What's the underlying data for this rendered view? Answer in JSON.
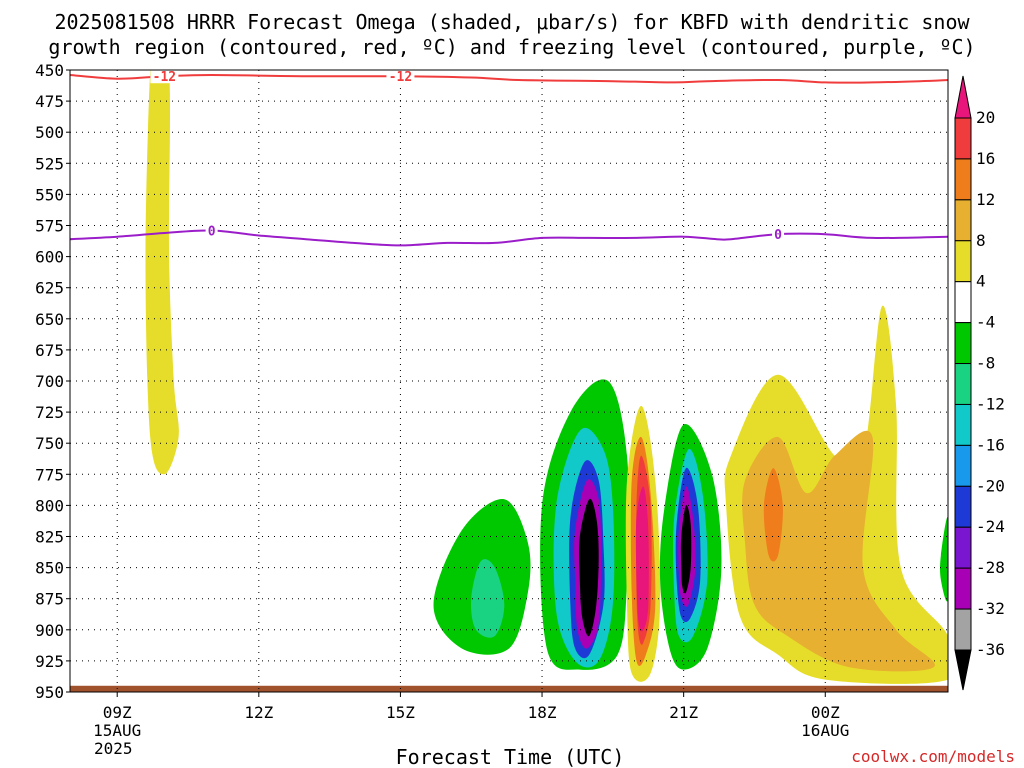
{
  "chart_data": {
    "type": "heatmap",
    "title_line1": "2025081508 HRRR Forecast Omega (shaded, μbar/s) for KBFD with dendritic snow",
    "title_line2": "growth region (contoured, red, ºC) and freezing level (contoured, purple, ºC)",
    "xlabel": "Forecast Time (UTC)",
    "ylabel": "",
    "y_ticks": [
      450,
      475,
      500,
      525,
      550,
      575,
      600,
      625,
      650,
      675,
      700,
      725,
      750,
      775,
      800,
      825,
      850,
      875,
      900,
      925,
      950
    ],
    "ylim": [
      450,
      950
    ],
    "xlim": [
      8,
      26.6
    ],
    "x_ticks": [
      {
        "x": 9,
        "label": "09Z",
        "sub1": "15AUG",
        "sub2": "2025"
      },
      {
        "x": 12,
        "label": "12Z",
        "sub1": "",
        "sub2": ""
      },
      {
        "x": 15,
        "label": "15Z",
        "sub1": "",
        "sub2": ""
      },
      {
        "x": 18,
        "label": "18Z",
        "sub1": "",
        "sub2": ""
      },
      {
        "x": 21,
        "label": "21Z",
        "sub1": "",
        "sub2": ""
      },
      {
        "x": 24,
        "label": "00Z",
        "sub1": "16AUG",
        "sub2": ""
      }
    ],
    "grid": true,
    "colorbar": {
      "labels": [
        "20",
        "16",
        "12",
        "8",
        "4",
        "-4",
        "-8",
        "-12",
        "-16",
        "-20",
        "-24",
        "-28",
        "-32",
        "-36"
      ],
      "colors": [
        "#e8157a",
        "#f03c3c",
        "#ef7d1c",
        "#e7b030",
        "#e6dd2a",
        "#ffffff",
        "#00c800",
        "#19d382",
        "#11c9c9",
        "#1899ec",
        "#1e3ad6",
        "#7b16d0",
        "#a800b4",
        "#a3a3a3",
        "#000000"
      ]
    },
    "contours": [
      {
        "label": "-12",
        "color": "#f03c3c",
        "points": [
          [
            8,
            454
          ],
          [
            9,
            457
          ],
          [
            10,
            455
          ],
          [
            11,
            454
          ],
          [
            13,
            455
          ],
          [
            15,
            455
          ],
          [
            16.5,
            456
          ],
          [
            17.5,
            458
          ],
          [
            19.5,
            459
          ],
          [
            20.8,
            460
          ],
          [
            21.5,
            459
          ],
          [
            23,
            458
          ],
          [
            24,
            460
          ],
          [
            25,
            460
          ],
          [
            26,
            459
          ],
          [
            26.6,
            458
          ]
        ]
      },
      {
        "label": "0",
        "color": "#9b1dc9",
        "points": [
          [
            8,
            586
          ],
          [
            9,
            584
          ],
          [
            10,
            581
          ],
          [
            11,
            579
          ],
          [
            12,
            583
          ],
          [
            13,
            586
          ],
          [
            14,
            589
          ],
          [
            15,
            591
          ],
          [
            16,
            589
          ],
          [
            17,
            589
          ],
          [
            18,
            585
          ],
          [
            19,
            585
          ],
          [
            20,
            585
          ],
          [
            21,
            584
          ],
          [
            21.7,
            586
          ],
          [
            22,
            586
          ],
          [
            23,
            582
          ],
          [
            24,
            582
          ],
          [
            25,
            585
          ],
          [
            26.6,
            584
          ]
        ]
      }
    ],
    "shading": [
      {
        "value": 4,
        "color": "#e6dd2a",
        "points": [
          [
            9.8,
            450
          ],
          [
            10.1,
            450
          ],
          [
            10.1,
            600
          ],
          [
            10.2,
            700
          ],
          [
            10.3,
            745
          ],
          [
            10.0,
            775
          ],
          [
            9.7,
            745
          ],
          [
            9.6,
            600
          ],
          [
            9.7,
            450
          ]
        ]
      },
      {
        "value": 4,
        "color": "#e6dd2a",
        "points": [
          [
            22.0,
            760
          ],
          [
            23.0,
            695
          ],
          [
            24.2,
            760
          ],
          [
            24.8,
            760
          ],
          [
            25.2,
            640
          ],
          [
            25.5,
            720
          ],
          [
            25.6,
            850
          ],
          [
            26.6,
            905
          ],
          [
            26.6,
            940
          ],
          [
            24.0,
            940
          ],
          [
            23.0,
            920
          ],
          [
            22.2,
            890
          ],
          [
            21.9,
            800
          ]
        ]
      },
      {
        "value": 8,
        "color": "#e7b030",
        "points": [
          [
            22.3,
            780
          ],
          [
            23.0,
            745
          ],
          [
            23.6,
            790
          ],
          [
            24.2,
            760
          ],
          [
            25.0,
            745
          ],
          [
            24.8,
            850
          ],
          [
            25.5,
            900
          ],
          [
            26.3,
            930
          ],
          [
            24.5,
            930
          ],
          [
            23.2,
            905
          ],
          [
            22.5,
            880
          ],
          [
            22.3,
            830
          ]
        ]
      },
      {
        "value": 12,
        "color": "#ef7d1c",
        "points": [
          [
            22.7,
            800
          ],
          [
            22.9,
            770
          ],
          [
            23.1,
            800
          ],
          [
            23.0,
            840
          ],
          [
            22.8,
            840
          ]
        ]
      },
      {
        "value": -4,
        "color": "#00c800",
        "points": [
          [
            15.7,
            880
          ],
          [
            16.3,
            820
          ],
          [
            17.2,
            795
          ],
          [
            17.7,
            830
          ],
          [
            17.7,
            870
          ],
          [
            17.3,
            915
          ],
          [
            16.3,
            915
          ]
        ]
      },
      {
        "value": -8,
        "color": "#19d382",
        "points": [
          [
            16.5,
            875
          ],
          [
            16.7,
            845
          ],
          [
            17.0,
            850
          ],
          [
            17.2,
            880
          ],
          [
            17.0,
            905
          ],
          [
            16.6,
            900
          ]
        ]
      },
      {
        "value": -4,
        "color": "#00c800",
        "points": [
          [
            18.0,
            800
          ],
          [
            18.6,
            725
          ],
          [
            19.4,
            700
          ],
          [
            19.8,
            760
          ],
          [
            19.8,
            860
          ],
          [
            19.6,
            920
          ],
          [
            18.8,
            932
          ],
          [
            18.1,
            915
          ]
        ]
      },
      {
        "value": -12,
        "color": "#11c9c9",
        "points": [
          [
            18.3,
            800
          ],
          [
            18.8,
            740
          ],
          [
            19.3,
            755
          ],
          [
            19.5,
            800
          ],
          [
            19.5,
            880
          ],
          [
            19.2,
            925
          ],
          [
            18.7,
            925
          ],
          [
            18.3,
            885
          ]
        ]
      },
      {
        "value": -24,
        "color": "#1e3ad6",
        "points": [
          [
            18.6,
            810
          ],
          [
            18.9,
            765
          ],
          [
            19.2,
            780
          ],
          [
            19.3,
            830
          ],
          [
            19.3,
            880
          ],
          [
            19.0,
            920
          ],
          [
            18.7,
            915
          ],
          [
            18.6,
            880
          ]
        ]
      },
      {
        "value": -32,
        "color": "#a800b4",
        "points": [
          [
            18.7,
            820
          ],
          [
            18.95,
            780
          ],
          [
            19.2,
            795
          ],
          [
            19.25,
            840
          ],
          [
            19.2,
            895
          ],
          [
            18.95,
            915
          ],
          [
            18.75,
            900
          ],
          [
            18.7,
            860
          ]
        ]
      },
      {
        "value": -36,
        "color": "#000000",
        "points": [
          [
            18.8,
            825
          ],
          [
            19.0,
            795
          ],
          [
            19.15,
            810
          ],
          [
            19.2,
            840
          ],
          [
            19.15,
            880
          ],
          [
            19.0,
            905
          ],
          [
            18.85,
            890
          ],
          [
            18.8,
            860
          ]
        ]
      },
      {
        "value": 4,
        "color": "#e6dd2a",
        "points": [
          [
            19.8,
            780
          ],
          [
            20.1,
            720
          ],
          [
            20.4,
            780
          ],
          [
            20.5,
            880
          ],
          [
            20.3,
            935
          ],
          [
            19.9,
            935
          ],
          [
            19.8,
            880
          ]
        ]
      },
      {
        "value": 12,
        "color": "#ef7d1c",
        "points": [
          [
            19.9,
            780
          ],
          [
            20.1,
            745
          ],
          [
            20.3,
            790
          ],
          [
            20.4,
            880
          ],
          [
            20.2,
            920
          ],
          [
            20.0,
            925
          ],
          [
            19.9,
            870
          ]
        ]
      },
      {
        "value": 16,
        "color": "#f03c3c",
        "points": [
          [
            20.0,
            800
          ],
          [
            20.1,
            760
          ],
          [
            20.3,
            800
          ],
          [
            20.3,
            880
          ],
          [
            20.15,
            910
          ],
          [
            20.05,
            905
          ],
          [
            20.0,
            870
          ]
        ]
      },
      {
        "value": 20,
        "color": "#e8157a",
        "points": [
          [
            20.0,
            810
          ],
          [
            20.15,
            785
          ],
          [
            20.25,
            820
          ],
          [
            20.25,
            880
          ],
          [
            20.15,
            900
          ],
          [
            20.05,
            895
          ],
          [
            20.0,
            860
          ]
        ]
      },
      {
        "value": -4,
        "color": "#00c800",
        "points": [
          [
            20.6,
            800
          ],
          [
            21.0,
            735
          ],
          [
            21.6,
            775
          ],
          [
            21.8,
            850
          ],
          [
            21.5,
            915
          ],
          [
            21.0,
            932
          ],
          [
            20.7,
            915
          ],
          [
            20.5,
            860
          ]
        ]
      },
      {
        "value": -12,
        "color": "#11c9c9",
        "points": [
          [
            20.8,
            810
          ],
          [
            21.1,
            755
          ],
          [
            21.4,
            790
          ],
          [
            21.5,
            860
          ],
          [
            21.2,
            905
          ],
          [
            20.9,
            905
          ],
          [
            20.8,
            870
          ]
        ]
      },
      {
        "value": -24,
        "color": "#1e3ad6",
        "points": [
          [
            20.85,
            815
          ],
          [
            21.05,
            770
          ],
          [
            21.3,
            800
          ],
          [
            21.35,
            860
          ],
          [
            21.15,
            890
          ],
          [
            20.95,
            890
          ],
          [
            20.85,
            860
          ]
        ]
      },
      {
        "value": -32,
        "color": "#a800b4",
        "points": [
          [
            20.9,
            820
          ],
          [
            21.05,
            785
          ],
          [
            21.2,
            810
          ],
          [
            21.25,
            850
          ],
          [
            21.1,
            880
          ],
          [
            20.95,
            875
          ],
          [
            20.9,
            855
          ]
        ]
      },
      {
        "value": -36,
        "color": "#000000",
        "points": [
          [
            20.95,
            825
          ],
          [
            21.05,
            800
          ],
          [
            21.15,
            815
          ],
          [
            21.15,
            850
          ],
          [
            21.05,
            870
          ],
          [
            20.97,
            865
          ],
          [
            20.95,
            850
          ]
        ]
      },
      {
        "value": -4,
        "color": "#00c800",
        "points": [
          [
            26.45,
            840
          ],
          [
            26.6,
            810
          ],
          [
            26.6,
            875
          ],
          [
            26.45,
            860
          ]
        ]
      }
    ],
    "ground_level": 945
  },
  "credit": "coolwx.com/models"
}
